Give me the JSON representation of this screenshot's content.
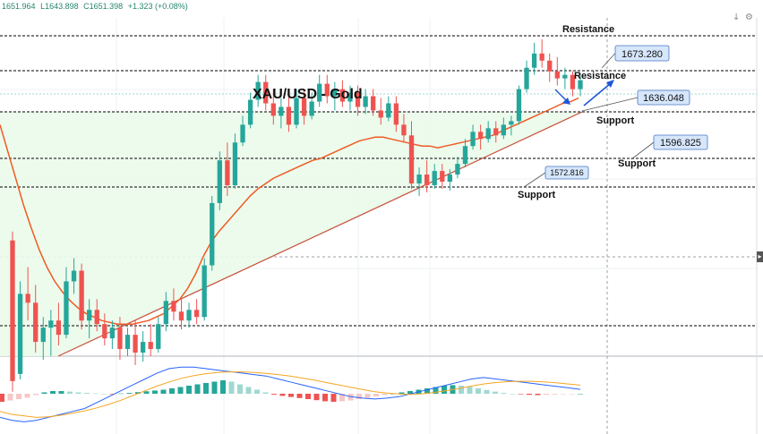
{
  "ohlc": {
    "open": "1651.964",
    "high": "L1643.898",
    "close": "C1651.398",
    "change": "+1.323 (+0.08%)"
  },
  "chart_data": {
    "type": "candlestick",
    "title": "XAU/USD - Gold",
    "ylim": [
      1510,
      1700
    ],
    "levels": [
      {
        "name": "Resistance",
        "value": 1690
      },
      {
        "name": "Resistance",
        "value": 1673.28
      },
      {
        "name": "Support",
        "value": 1655
      },
      {
        "name": "Support",
        "value": 1636.048
      },
      {
        "name": "Support",
        "value": 1596.825
      },
      {
        "name": "Support",
        "value": 1572.816
      }
    ],
    "annotations": [
      {
        "text": "Resistance",
        "ref": "top-line"
      },
      {
        "text": "Resistance",
        "ref": "upper-line"
      },
      {
        "text": "Support",
        "ref": "mid-line"
      },
      {
        "text": "Support",
        "ref": "lower-line"
      },
      {
        "text": "Support",
        "ref": "bottom-line"
      }
    ],
    "price_labels": [
      "1673.280",
      "1636.048",
      "1596.825",
      "1572.816"
    ],
    "candles": [
      [
        1575,
        1580,
        1490,
        1496
      ],
      [
        1500,
        1552,
        1497,
        1545
      ],
      [
        1545,
        1560,
        1530,
        1540
      ],
      [
        1540,
        1550,
        1512,
        1518
      ],
      [
        1518,
        1532,
        1508,
        1526
      ],
      [
        1526,
        1536,
        1510,
        1530
      ],
      [
        1530,
        1540,
        1516,
        1522
      ],
      [
        1522,
        1560,
        1520,
        1552
      ],
      [
        1552,
        1565,
        1545,
        1558
      ],
      [
        1558,
        1562,
        1525,
        1530
      ],
      [
        1530,
        1542,
        1520,
        1536
      ],
      [
        1536,
        1542,
        1524,
        1528
      ],
      [
        1528,
        1534,
        1516,
        1520
      ],
      [
        1520,
        1530,
        1514,
        1526
      ],
      [
        1526,
        1532,
        1508,
        1514
      ],
      [
        1514,
        1526,
        1510,
        1522
      ],
      [
        1522,
        1530,
        1505,
        1512
      ],
      [
        1512,
        1524,
        1507,
        1518
      ],
      [
        1518,
        1528,
        1510,
        1514
      ],
      [
        1514,
        1532,
        1512,
        1528
      ],
      [
        1528,
        1546,
        1524,
        1541
      ],
      [
        1541,
        1548,
        1530,
        1535
      ],
      [
        1535,
        1542,
        1525,
        1530
      ],
      [
        1530,
        1540,
        1526,
        1536
      ],
      [
        1536,
        1542,
        1528,
        1532
      ],
      [
        1532,
        1565,
        1530,
        1561
      ],
      [
        1561,
        1600,
        1558,
        1596
      ],
      [
        1596,
        1625,
        1592,
        1620
      ],
      [
        1620,
        1630,
        1600,
        1606
      ],
      [
        1606,
        1635,
        1604,
        1630
      ],
      [
        1630,
        1645,
        1628,
        1640
      ],
      [
        1640,
        1658,
        1638,
        1654
      ],
      [
        1654,
        1668,
        1650,
        1664
      ],
      [
        1664,
        1668,
        1648,
        1652
      ],
      [
        1652,
        1660,
        1640,
        1645
      ],
      [
        1645,
        1655,
        1638,
        1650
      ],
      [
        1650,
        1658,
        1636,
        1640
      ],
      [
        1640,
        1660,
        1638,
        1655
      ],
      [
        1655,
        1660,
        1640,
        1645
      ],
      [
        1645,
        1658,
        1643,
        1653
      ],
      [
        1653,
        1668,
        1650,
        1663
      ],
      [
        1663,
        1668,
        1652,
        1656
      ],
      [
        1656,
        1664,
        1648,
        1660
      ],
      [
        1660,
        1665,
        1650,
        1653
      ],
      [
        1653,
        1662,
        1648,
        1658
      ],
      [
        1658,
        1662,
        1645,
        1650
      ],
      [
        1650,
        1660,
        1646,
        1656
      ],
      [
        1656,
        1660,
        1645,
        1648
      ],
      [
        1648,
        1655,
        1640,
        1644
      ],
      [
        1644,
        1656,
        1642,
        1652
      ],
      [
        1652,
        1656,
        1636,
        1640
      ],
      [
        1640,
        1646,
        1630,
        1634
      ],
      [
        1634,
        1642,
        1604,
        1607
      ],
      [
        1607,
        1616,
        1600,
        1612
      ],
      [
        1612,
        1620,
        1602,
        1606
      ],
      [
        1606,
        1618,
        1604,
        1614
      ],
      [
        1614,
        1618,
        1604,
        1608
      ],
      [
        1608,
        1615,
        1603,
        1612
      ],
      [
        1612,
        1622,
        1610,
        1618
      ],
      [
        1618,
        1632,
        1616,
        1628
      ],
      [
        1628,
        1640,
        1626,
        1636
      ],
      [
        1636,
        1640,
        1626,
        1632
      ],
      [
        1632,
        1642,
        1630,
        1638
      ],
      [
        1638,
        1642,
        1630,
        1634
      ],
      [
        1634,
        1644,
        1632,
        1640
      ],
      [
        1640,
        1645,
        1634,
        1642
      ],
      [
        1642,
        1662,
        1640,
        1660
      ],
      [
        1660,
        1676,
        1658,
        1672
      ],
      [
        1672,
        1686,
        1668,
        1680
      ],
      [
        1680,
        1688,
        1672,
        1676
      ],
      [
        1676,
        1680,
        1664,
        1670
      ],
      [
        1670,
        1678,
        1662,
        1666
      ],
      [
        1666,
        1672,
        1660,
        1668
      ],
      [
        1668,
        1670,
        1656,
        1660
      ],
      [
        1660,
        1668,
        1656,
        1665
      ]
    ],
    "sma": [
      1640,
      1625,
      1610,
      1595,
      1582,
      1570,
      1560,
      1552,
      1546,
      1541,
      1537,
      1534,
      1532,
      1530,
      1529,
      1528,
      1528,
      1528,
      1529,
      1530,
      1532,
      1534,
      1538,
      1542,
      1548,
      1556,
      1566,
      1574,
      1580,
      1585,
      1590,
      1595,
      1600,
      1604,
      1607,
      1610,
      1612,
      1614,
      1616,
      1618,
      1620,
      1621,
      1623,
      1625,
      1627,
      1629,
      1631,
      1632,
      1633,
      1633,
      1632,
      1631,
      1630,
      1629,
      1628,
      1628,
      1627,
      1628,
      1629,
      1630,
      1631,
      1632,
      1633,
      1634,
      1636,
      1638,
      1640,
      1642,
      1644,
      1646,
      1648,
      1650,
      1652,
      1653,
      1655
    ],
    "macd_histogram": [
      -3,
      -2.5,
      -2,
      -1.5,
      -0.5,
      0.5,
      1,
      1,
      0.8,
      0.5,
      0.3,
      0.1,
      0,
      -0.2,
      0.1,
      0.3,
      0.6,
      0.9,
      1.2,
      1.5,
      2,
      2.5,
      3,
      3.5,
      4,
      4.5,
      5,
      4.5,
      3.5,
      2.5,
      1.5,
      0.5,
      -0.3,
      -0.8,
      -1.2,
      -1.6,
      -2,
      -2.4,
      -2.8,
      -3,
      -2.8,
      -2.5,
      -2,
      -1.5,
      -1,
      -0.5,
      0,
      0.5,
      1,
      1.5,
      2,
      2.5,
      3,
      3.2,
      3,
      2.6,
      2,
      1.4,
      0.8,
      0.3,
      0,
      -0.2,
      -0.4,
      -0.5,
      -0.4,
      -0.3,
      -0.2,
      -0.1,
      0
    ],
    "macd_line": [
      -8,
      -9,
      -9.5,
      -9,
      -8,
      -7,
      -6,
      -5,
      -3,
      -1,
      1,
      3,
      5,
      7,
      8.5,
      9,
      9,
      8.5,
      8,
      7.5,
      7,
      6.5,
      6,
      5,
      4,
      3,
      2,
      1,
      0,
      -1,
      -1.5,
      -1.8,
      -1.5,
      -1,
      0,
      1,
      2,
      3,
      4,
      5,
      5.5,
      5,
      4.5,
      4,
      3.5,
      3,
      2.5,
      2,
      1.5
    ],
    "signal_line": [
      -6,
      -7,
      -7.5,
      -8,
      -7.8,
      -7.3,
      -6.6,
      -5.8,
      -4.8,
      -3.6,
      -2.2,
      -0.6,
      1,
      2.6,
      4,
      5.2,
      6.1,
      6.8,
      7.2,
      7.4,
      7.4,
      7.2,
      6.9,
      6.5,
      6,
      5.3,
      4.6,
      3.8,
      3,
      2.2,
      1.4,
      0.7,
      0.2,
      -0.1,
      -0.2,
      0,
      0.5,
      1.1,
      1.8,
      2.6,
      3.3,
      3.8,
      4.1,
      4.2,
      4.2,
      4,
      3.7,
      3.3,
      2.9
    ],
    "colors": {
      "up": "#26a69a",
      "down": "#ef5350",
      "sma": "#f05a24",
      "macd": "#2962ff",
      "signal": "#f5a623",
      "channel_fill": "#eafbea",
      "trendline": "#c8503a"
    }
  }
}
